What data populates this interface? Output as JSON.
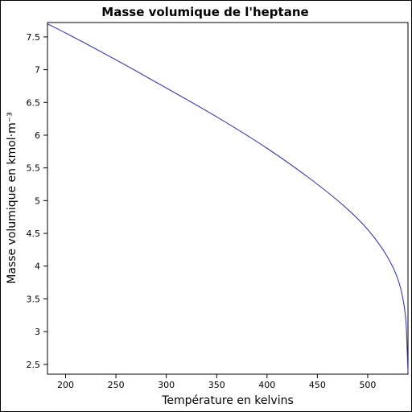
{
  "chart_data": {
    "type": "line",
    "title": "Masse volumique de l'heptane",
    "xlabel": "Température en kelvins",
    "ylabel": "Masse volumique en kmol·m⁻³",
    "xlim": [
      182,
      540
    ],
    "ylim": [
      2.35,
      7.72
    ],
    "xticks": [
      200,
      250,
      300,
      350,
      400,
      450,
      500
    ],
    "yticks": [
      2.5,
      3,
      3.5,
      4,
      4.5,
      5,
      5.5,
      6,
      6.5,
      7,
      7.5
    ],
    "grid": false,
    "series": [
      {
        "color": "#3a3aa8",
        "x": [
          182,
          200,
          250,
          300,
          350,
          400,
          450,
          480,
          500,
          520,
          530,
          535,
          538,
          540
        ],
        "y": [
          7.7,
          7.56,
          7.15,
          6.72,
          6.28,
          5.8,
          5.25,
          4.87,
          4.56,
          4.13,
          3.8,
          3.5,
          3.15,
          2.38
        ]
      }
    ]
  }
}
